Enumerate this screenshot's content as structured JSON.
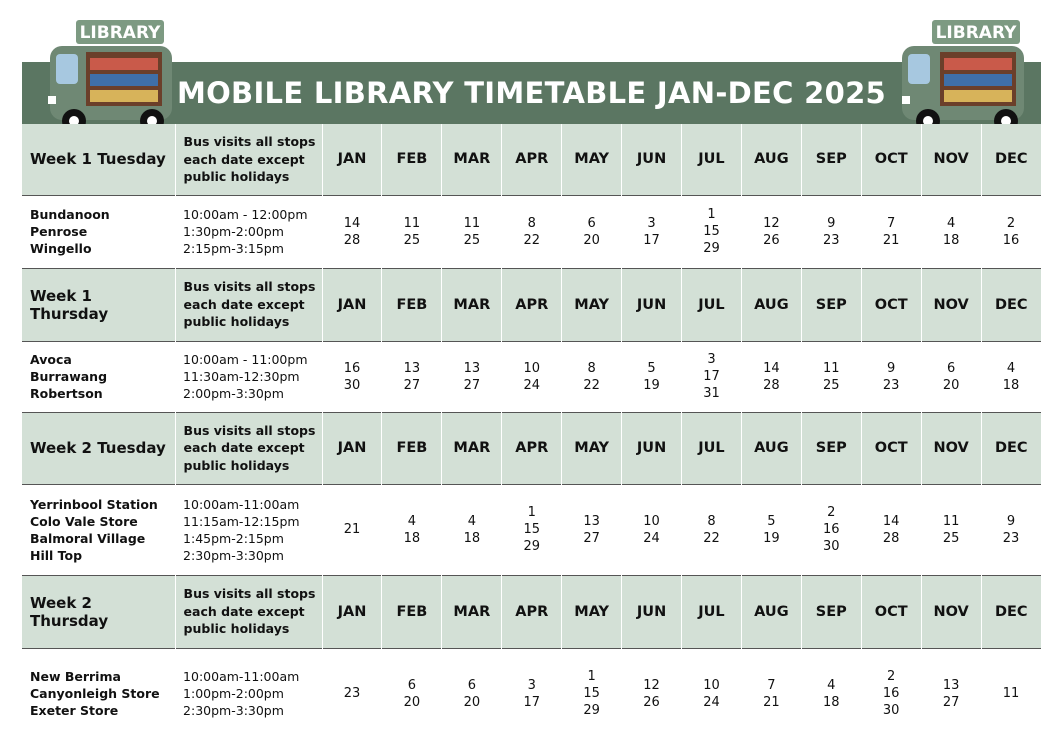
{
  "header": {
    "title": "MOBILE LIBRARY TIMETABLE JAN-DEC 2025",
    "sign_left": "LIBRARY",
    "sign_right": "LIBRARY"
  },
  "sections": [
    {
      "week": "Week 1 Tuesday",
      "note": "Bus visits all stops each date except public holidays",
      "months": [
        "JAN",
        "FEB",
        "MAR",
        "APR",
        "MAY",
        "JUN",
        "JUL",
        "AUG",
        "SEP",
        "OCT",
        "NOV",
        "DEC"
      ],
      "stops": [
        "Bundanoon",
        "Penrose",
        "Wingello"
      ],
      "times": [
        "10:00am - 12:00pm",
        "1:30pm-2:00pm",
        "2:15pm-3:15pm"
      ],
      "dates": [
        [
          14,
          28
        ],
        [
          11,
          25
        ],
        [
          11,
          25
        ],
        [
          8,
          22
        ],
        [
          6,
          20
        ],
        [
          3,
          17
        ],
        [
          1,
          15,
          29
        ],
        [
          12,
          26
        ],
        [
          9,
          23
        ],
        [
          7,
          21
        ],
        [
          4,
          18
        ],
        [
          2,
          16
        ]
      ]
    },
    {
      "week": "Week 1 Thursday",
      "note": "Bus visits all stops each date except public holidays",
      "months": [
        "JAN",
        "FEB",
        "MAR",
        "APR",
        "MAY",
        "JUN",
        "JUL",
        "AUG",
        "SEP",
        "OCT",
        "NOV",
        "DEC"
      ],
      "stops": [
        "Avoca",
        "Burrawang",
        "Robertson"
      ],
      "times": [
        "10:00am - 11:00pm",
        "11:30am-12:30pm",
        "2:00pm-3:30pm"
      ],
      "dates": [
        [
          16,
          30
        ],
        [
          13,
          27
        ],
        [
          13,
          27
        ],
        [
          10,
          24
        ],
        [
          8,
          22
        ],
        [
          5,
          19
        ],
        [
          3,
          17,
          31
        ],
        [
          14,
          28
        ],
        [
          11,
          25
        ],
        [
          9,
          23
        ],
        [
          6,
          20
        ],
        [
          4,
          18
        ]
      ]
    },
    {
      "week": "Week 2 Tuesday",
      "note": "Bus visits all stops each date except public holidays",
      "months": [
        "JAN",
        "FEB",
        "MAR",
        "APR",
        "MAY",
        "JUN",
        "JUL",
        "AUG",
        "SEP",
        "OCT",
        "NOV",
        "DEC"
      ],
      "stops": [
        "Yerrinbool Station",
        "Colo Vale Store",
        "Balmoral Village",
        "Hill Top"
      ],
      "times": [
        "10:00am-11:00am",
        "11:15am-12:15pm",
        "1:45pm-2:15pm",
        "2:30pm-3:30pm"
      ],
      "dates": [
        [
          21
        ],
        [
          4,
          18
        ],
        [
          4,
          18
        ],
        [
          1,
          15,
          29
        ],
        [
          13,
          27
        ],
        [
          10,
          24
        ],
        [
          8,
          22
        ],
        [
          5,
          19
        ],
        [
          2,
          16,
          30
        ],
        [
          14,
          28
        ],
        [
          11,
          25
        ],
        [
          9,
          23
        ]
      ]
    },
    {
      "week": "Week 2 Thursday",
      "note": "Bus visits all stops each date except public holidays",
      "months": [
        "JAN",
        "FEB",
        "MAR",
        "APR",
        "MAY",
        "JUN",
        "JUL",
        "AUG",
        "SEP",
        "OCT",
        "NOV",
        "DEC"
      ],
      "stops": [
        "New Berrima",
        "Canyonleigh Store",
        "Exeter Store"
      ],
      "times": [
        "10:00am-11:00am",
        "1:00pm-2:00pm",
        "2:30pm-3:30pm"
      ],
      "dates": [
        [
          23
        ],
        [
          6,
          20
        ],
        [
          6,
          20
        ],
        [
          3,
          17
        ],
        [
          1,
          15,
          29
        ],
        [
          12,
          26
        ],
        [
          10,
          24
        ],
        [
          7,
          21
        ],
        [
          4,
          18
        ],
        [
          2,
          16,
          30
        ],
        [
          13,
          27
        ],
        [
          11
        ]
      ]
    }
  ]
}
